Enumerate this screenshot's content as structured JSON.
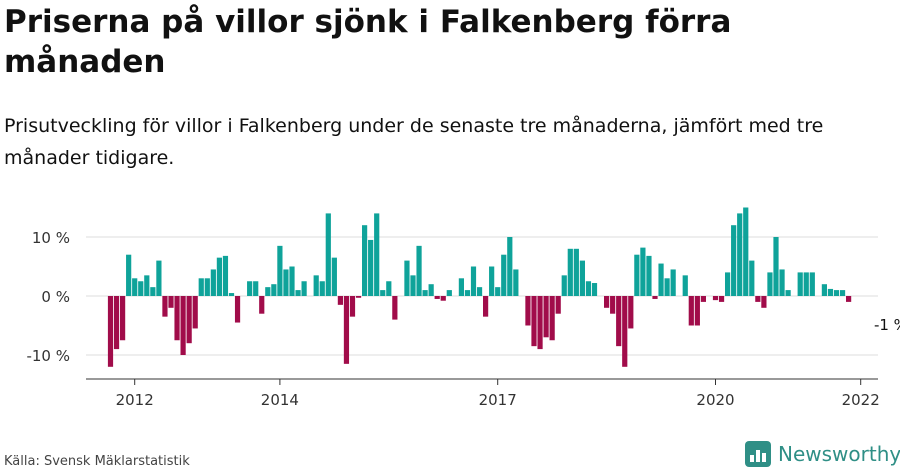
{
  "title": "Priserna på villor sjönk i Falkenberg förra månaden",
  "subtitle": "Prisutveckling för villor i Falkenberg under de senaste tre månaderna, jämfört med tre månader tidigare.",
  "source": "Källa: Svensk Mäklarstatistik",
  "brand": {
    "name": "Newsworthy",
    "icon": "newsworthy-logo-icon"
  },
  "colors": {
    "positive": "#0fa39a",
    "negative": "#a10c4a",
    "grid": "#dddddd",
    "axis": "#333333"
  },
  "chart_data": {
    "type": "bar",
    "start": "2012-01",
    "ylim": [
      -14,
      16
    ],
    "yticks": [
      10,
      0,
      -10
    ],
    "ytick_labels": [
      "10 %",
      "0 %",
      "-10 %"
    ],
    "xticks": [
      {
        "index": 4,
        "label": "2012"
      },
      {
        "index": 28,
        "label": "2014"
      },
      {
        "index": 64,
        "label": "2017"
      },
      {
        "index": 100,
        "label": "2020"
      },
      {
        "index": 124,
        "label": "2022"
      }
    ],
    "annotation": {
      "index": 129,
      "label": "-1 %"
    },
    "values": [
      -12,
      -9,
      -7.5,
      7,
      3,
      2.5,
      3.5,
      1.5,
      6,
      -3.5,
      -2,
      -7.5,
      -10,
      -8,
      -5.5,
      3,
      3,
      4.5,
      6.5,
      6.8,
      0.5,
      -4.5,
      0,
      2.5,
      2.5,
      -3,
      1.5,
      2,
      8.5,
      4.5,
      5,
      1,
      2.5,
      0,
      3.5,
      2.5,
      14,
      6.5,
      -1.5,
      -11.5,
      -3.5,
      -0.3,
      12,
      9.5,
      14,
      1,
      2.5,
      -4,
      0,
      6,
      3.5,
      8.5,
      1,
      2,
      -0.5,
      -0.8,
      1,
      0,
      3,
      1,
      5,
      1.5,
      -3.5,
      5,
      1.5,
      7,
      10,
      4.5,
      0,
      -5,
      -8.5,
      -9,
      -7,
      -7.5,
      -3,
      3.5,
      8,
      8,
      6,
      2.5,
      2.2,
      0,
      -2,
      -3,
      -8.5,
      -12,
      -5.5,
      7,
      8.2,
      6.8,
      -0.5,
      5.5,
      3,
      4.5,
      0,
      3.5,
      -5,
      -5,
      -1,
      0,
      -0.7,
      -1,
      4,
      12,
      14,
      15,
      6,
      -1,
      -2,
      4,
      10,
      4.5,
      1,
      0,
      4,
      4,
      4,
      0,
      2,
      1.2,
      1,
      1,
      -1
    ]
  }
}
